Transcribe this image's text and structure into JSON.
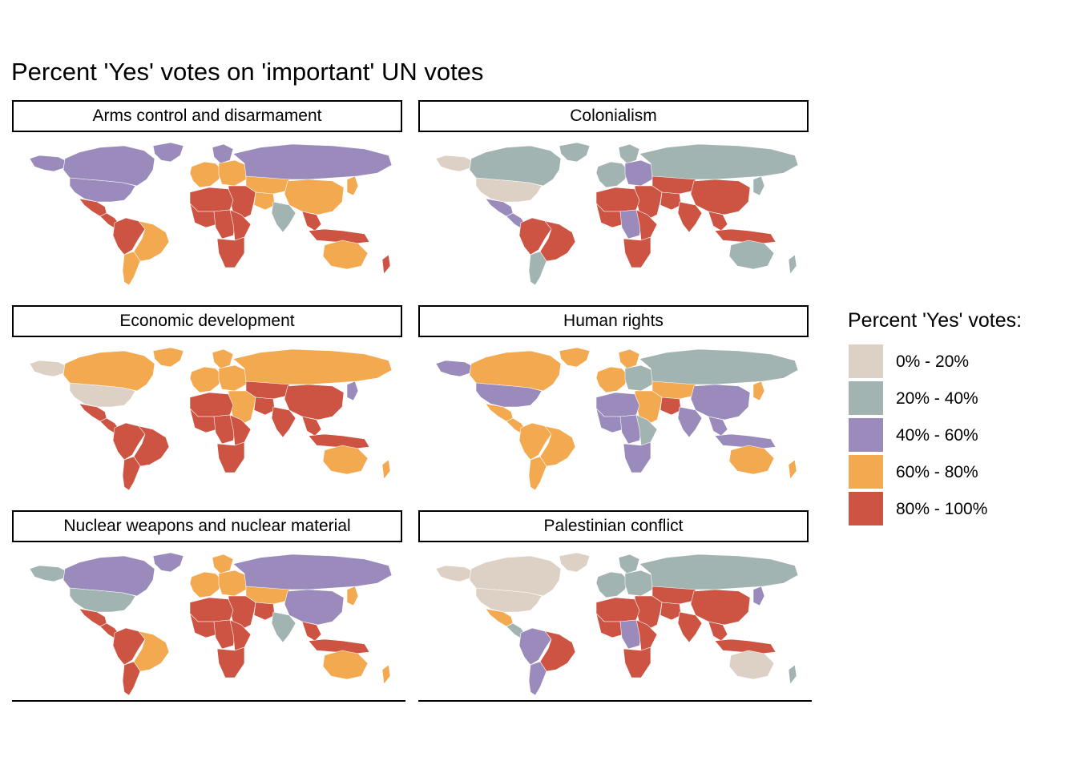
{
  "title": "Percent 'Yes' votes on 'important' UN votes",
  "legend": {
    "title": "Percent 'Yes' votes:",
    "items": [
      {
        "label": "0% - 20%",
        "color": "#DDD0C5"
      },
      {
        "label": "20% - 40%",
        "color": "#A2B4B2"
      },
      {
        "label": "40% - 60%",
        "color": "#9B8ABC"
      },
      {
        "label": "60% - 80%",
        "color": "#F2A94F"
      },
      {
        "label": "80% - 100%",
        "color": "#CD5443"
      }
    ]
  },
  "panels": [
    {
      "label": "Arms control and disarmament",
      "regions": {
        "can": 2,
        "usa": 2,
        "alaska": 2,
        "greenland": 2,
        "mex": 4,
        "caam": 4,
        "sam_n": 4,
        "brazil": 3,
        "sam_s": 3,
        "eur_w": 3,
        "scand": 2,
        "eur_e": 3,
        "russia": 2,
        "nafr": 4,
        "wafr": 4,
        "cafr": 4,
        "eafr": 4,
        "safr": 4,
        "mideast": 4,
        "iran": 3,
        "cnasia": 3,
        "india": 1,
        "china": 3,
        "japan": 3,
        "seasia": 4,
        "indo": 4,
        "aus": 3,
        "nz": 4
      }
    },
    {
      "label": "Colonialism",
      "regions": {
        "can": 1,
        "usa": 0,
        "alaska": 0,
        "greenland": 1,
        "mex": 2,
        "caam": 2,
        "sam_n": 4,
        "brazil": 4,
        "sam_s": 1,
        "eur_w": 1,
        "scand": 1,
        "eur_e": 2,
        "russia": 1,
        "nafr": 4,
        "wafr": 4,
        "cafr": 2,
        "eafr": 4,
        "safr": 4,
        "mideast": 4,
        "iran": 4,
        "cnasia": 4,
        "india": 4,
        "china": 4,
        "japan": 1,
        "seasia": 4,
        "indo": 4,
        "aus": 1,
        "nz": 1
      }
    },
    {
      "label": "Economic development",
      "regions": {
        "can": 3,
        "usa": 0,
        "alaska": 0,
        "greenland": 3,
        "mex": 4,
        "caam": 4,
        "sam_n": 4,
        "brazil": 4,
        "sam_s": 4,
        "eur_w": 3,
        "scand": 3,
        "eur_e": 3,
        "russia": 3,
        "nafr": 4,
        "wafr": 4,
        "cafr": 4,
        "eafr": 4,
        "safr": 4,
        "mideast": 3,
        "iran": 4,
        "cnasia": 4,
        "india": 4,
        "china": 4,
        "japan": 2,
        "seasia": 4,
        "indo": 4,
        "aus": 3,
        "nz": 3
      }
    },
    {
      "label": "Human rights",
      "regions": {
        "can": 3,
        "usa": 2,
        "alaska": 2,
        "greenland": 3,
        "mex": 3,
        "caam": 3,
        "sam_n": 3,
        "brazil": 3,
        "sam_s": 3,
        "eur_w": 3,
        "scand": 3,
        "eur_e": 1,
        "russia": 1,
        "nafr": 2,
        "wafr": 2,
        "cafr": 2,
        "eafr": 1,
        "safr": 2,
        "mideast": 3,
        "iran": 4,
        "cnasia": 3,
        "india": 2,
        "china": 2,
        "japan": 3,
        "seasia": 2,
        "indo": 2,
        "aus": 3,
        "nz": 3
      }
    },
    {
      "label": "Nuclear weapons and nuclear material",
      "regions": {
        "can": 2,
        "usa": 1,
        "alaska": 1,
        "greenland": 2,
        "mex": 4,
        "caam": 4,
        "sam_n": 4,
        "brazil": 3,
        "sam_s": 4,
        "eur_w": 3,
        "scand": 3,
        "eur_e": 3,
        "russia": 2,
        "nafr": 4,
        "wafr": 4,
        "cafr": 4,
        "eafr": 4,
        "safr": 4,
        "mideast": 4,
        "iran": 4,
        "cnasia": 3,
        "india": 1,
        "china": 2,
        "japan": 3,
        "seasia": 4,
        "indo": 4,
        "aus": 3,
        "nz": 3
      }
    },
    {
      "label": "Palestinian conflict",
      "regions": {
        "can": 0,
        "usa": 0,
        "alaska": 0,
        "greenland": 0,
        "mex": 3,
        "caam": 1,
        "sam_n": 2,
        "brazil": 4,
        "sam_s": 2,
        "eur_w": 1,
        "scand": 1,
        "eur_e": 1,
        "russia": 1,
        "nafr": 4,
        "wafr": 4,
        "cafr": 2,
        "eafr": 4,
        "safr": 4,
        "mideast": 4,
        "iran": 4,
        "cnasia": 4,
        "india": 4,
        "china": 4,
        "japan": 2,
        "seasia": 4,
        "indo": 4,
        "aus": 0,
        "nz": 1
      }
    }
  ]
}
